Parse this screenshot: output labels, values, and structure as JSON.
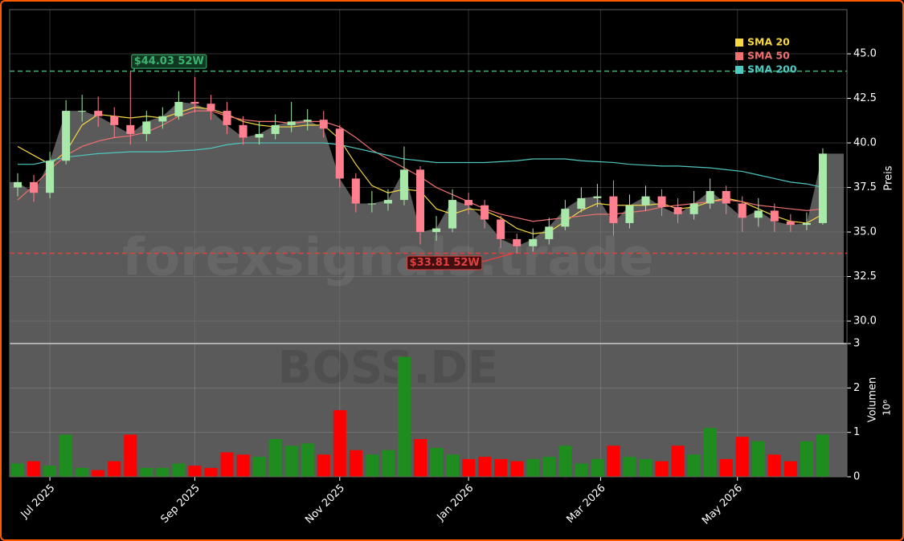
{
  "chart_data": [
    {
      "type": "candlestick",
      "watermark": "forexsignals.trade",
      "y_label": "Preis",
      "x": [
        0.5,
        1.5,
        2.5,
        3.5,
        4.5,
        5.5,
        6.5,
        7.5,
        8.5,
        9.5,
        10.5,
        11.5,
        12.5,
        13.5,
        14.5,
        15.5,
        16.5,
        17.5,
        18.5,
        19.5,
        20.5,
        21.5,
        22.5,
        23.5,
        24.5,
        25.5,
        26.5,
        27.5,
        28.5,
        29.5,
        30.5,
        31.5,
        32.5,
        33.5,
        34.5,
        35.5,
        36.5,
        37.5,
        38.5,
        39.5,
        40.5,
        41.5,
        42.5,
        43.5,
        44.5,
        45.5,
        46.5,
        47.5,
        48.5,
        49.5,
        50.5
      ],
      "open": [
        37.5,
        37.8,
        37.2,
        39.0,
        41.8,
        41.8,
        41.5,
        41.0,
        40.5,
        41.2,
        41.5,
        42.3,
        42.2,
        41.8,
        41.0,
        40.3,
        40.5,
        41.0,
        41.2,
        41.3,
        40.8,
        38.0,
        36.6,
        36.6,
        36.8,
        38.5,
        35.0,
        35.2,
        36.8,
        36.5,
        35.7,
        34.6,
        34.2,
        34.6,
        35.3,
        36.3,
        36.9,
        37.0,
        35.5,
        36.5,
        37.0,
        36.4,
        36.0,
        36.6,
        37.3,
        36.6,
        35.8,
        36.2,
        35.6,
        35.4,
        35.5
      ],
      "high": [
        38.3,
        38.2,
        39.5,
        42.4,
        42.7,
        42.6,
        42.0,
        44.03,
        41.8,
        42.0,
        42.9,
        43.7,
        42.7,
        42.3,
        41.5,
        41.2,
        41.6,
        42.3,
        41.9,
        41.8,
        41.0,
        38.3,
        37.3,
        37.4,
        39.8,
        38.7,
        35.9,
        37.4,
        37.2,
        36.8,
        35.9,
        34.9,
        35.2,
        35.8,
        36.8,
        37.5,
        37.7,
        37.9,
        37.1,
        37.6,
        37.4,
        36.9,
        37.3,
        38.0,
        37.6,
        37.0,
        36.9,
        36.6,
        36.0,
        36.1,
        39.7
      ],
      "low": [
        37.0,
        36.7,
        36.9,
        38.8,
        41.2,
        40.9,
        40.3,
        39.9,
        40.1,
        40.8,
        41.3,
        41.7,
        41.3,
        40.5,
        39.9,
        39.9,
        40.2,
        40.6,
        40.7,
        40.3,
        37.5,
        36.1,
        36.1,
        36.2,
        36.5,
        34.3,
        34.5,
        35.0,
        36.0,
        35.2,
        34.1,
        33.81,
        33.9,
        34.3,
        35.1,
        36.1,
        36.4,
        34.8,
        35.2,
        36.2,
        35.9,
        35.5,
        35.7,
        36.3,
        36.0,
        35.0,
        35.3,
        35.0,
        35.0,
        35.1,
        35.4
      ],
      "close": [
        37.8,
        37.2,
        39.0,
        41.8,
        41.8,
        41.5,
        41.0,
        40.5,
        41.2,
        41.5,
        42.3,
        42.2,
        41.8,
        41.0,
        40.3,
        40.5,
        41.0,
        41.2,
        41.3,
        40.8,
        38.0,
        36.6,
        36.6,
        36.8,
        38.5,
        35.0,
        35.2,
        36.8,
        36.5,
        35.7,
        34.6,
        34.2,
        34.6,
        35.3,
        36.3,
        36.9,
        37.0,
        35.5,
        36.5,
        37.0,
        36.4,
        36.0,
        36.6,
        37.3,
        36.6,
        35.8,
        36.2,
        35.6,
        35.4,
        35.5,
        39.4
      ],
      "up_color": "#a8e8a8",
      "down_color": "#ff7f8f",
      "area_color": "#5a5a5a",
      "series": [
        {
          "name": "SMA 20",
          "color": "#f5d742",
          "values": [
            39.8,
            39.3,
            38.8,
            39.5,
            41.0,
            41.6,
            41.5,
            41.4,
            41.5,
            41.4,
            41.7,
            42.0,
            41.9,
            41.6,
            41.2,
            41.0,
            40.9,
            40.9,
            41.0,
            41.0,
            40.2,
            38.8,
            37.6,
            37.2,
            37.4,
            37.3,
            36.3,
            36.0,
            36.3,
            36.2,
            35.8,
            35.2,
            34.9,
            35.0,
            35.6,
            36.2,
            36.6,
            36.5,
            36.5,
            36.5,
            36.6,
            36.3,
            36.4,
            36.7,
            36.9,
            36.7,
            36.3,
            35.9,
            35.6,
            35.5,
            36.0
          ]
        },
        {
          "name": "SMA 50",
          "color": "#f07070",
          "values": [
            36.8,
            37.6,
            38.5,
            39.3,
            39.8,
            40.1,
            40.3,
            40.4,
            40.6,
            41.0,
            41.5,
            41.8,
            41.8,
            41.5,
            41.3,
            41.2,
            41.2,
            41.1,
            41.2,
            41.2,
            40.9,
            40.3,
            39.6,
            39.1,
            38.6,
            38.1,
            37.5,
            37.1,
            36.7,
            36.3,
            36.0,
            35.8,
            35.6,
            35.7,
            35.8,
            35.9,
            36.0,
            36.0,
            36.1,
            36.2,
            36.4,
            36.5,
            36.6,
            36.7,
            36.8,
            36.7,
            36.5,
            36.4,
            36.3,
            36.2,
            36.3
          ]
        },
        {
          "name": "SMA 200",
          "color": "#4fc8c0",
          "values": [
            38.8,
            38.8,
            39.0,
            39.2,
            39.3,
            39.4,
            39.45,
            39.5,
            39.5,
            39.5,
            39.55,
            39.6,
            39.7,
            39.9,
            40.0,
            40.0,
            40.0,
            40.0,
            40.0,
            40.0,
            39.9,
            39.7,
            39.5,
            39.3,
            39.1,
            39.0,
            38.9,
            38.9,
            38.9,
            38.9,
            38.95,
            39.0,
            39.1,
            39.1,
            39.1,
            39.0,
            38.95,
            38.9,
            38.8,
            38.75,
            38.7,
            38.7,
            38.65,
            38.6,
            38.5,
            38.4,
            38.2,
            38.0,
            37.8,
            37.7,
            37.5
          ]
        }
      ],
      "annotations": [
        {
          "value": 44.03,
          "label": "$44.03 52W",
          "color": "#3cb371"
        },
        {
          "value": 33.81,
          "label": "$33.81 52W",
          "color": "#e04040"
        }
      ],
      "xlim": [
        0,
        52
      ],
      "ylim": [
        28.74,
        47.48
      ],
      "yticks": [
        {
          "value": 30,
          "label": "30.0"
        },
        {
          "value": 32.5,
          "label": "32.5"
        },
        {
          "value": 35,
          "label": "35.0"
        },
        {
          "value": 37.5,
          "label": "37.5"
        },
        {
          "value": 40,
          "label": "40.0"
        },
        {
          "value": 42.5,
          "label": "42.5"
        },
        {
          "value": 45,
          "label": "45.0"
        }
      ],
      "grid": true,
      "legend": "upper right"
    },
    {
      "type": "bar",
      "watermark": "BOSS.DE",
      "y_label": "Volumen",
      "y_scale_label": "10⁶",
      "x": [
        0.5,
        1.5,
        2.5,
        3.5,
        4.5,
        5.5,
        6.5,
        7.5,
        8.5,
        9.5,
        10.5,
        11.5,
        12.5,
        13.5,
        14.5,
        15.5,
        16.5,
        17.5,
        18.5,
        19.5,
        20.5,
        21.5,
        22.5,
        23.5,
        24.5,
        25.5,
        26.5,
        27.5,
        28.5,
        29.5,
        30.5,
        31.5,
        32.5,
        33.5,
        34.5,
        35.5,
        36.5,
        37.5,
        38.5,
        39.5,
        40.5,
        41.5,
        42.5,
        43.5,
        44.5,
        45.5,
        46.5,
        47.5,
        48.5,
        49.5,
        50.5
      ],
      "values": [
        0.3,
        0.35,
        0.25,
        0.95,
        0.2,
        0.15,
        0.35,
        0.95,
        0.2,
        0.2,
        0.3,
        0.25,
        0.2,
        0.55,
        0.5,
        0.45,
        0.85,
        0.7,
        0.75,
        0.5,
        1.5,
        0.6,
        0.5,
        0.6,
        2.7,
        0.85,
        0.65,
        0.5,
        0.4,
        0.45,
        0.4,
        0.35,
        0.4,
        0.45,
        0.7,
        0.3,
        0.4,
        0.7,
        0.45,
        0.4,
        0.35,
        0.7,
        0.5,
        1.1,
        0.4,
        0.9,
        0.8,
        0.5,
        0.35,
        0.8,
        0.95
      ],
      "up_color": "#1e8c1e",
      "down_color": "#ff0000",
      "xlim": [
        0,
        52
      ],
      "ylim": [
        0,
        3
      ],
      "yticks": [
        0,
        1,
        2,
        3
      ],
      "xticks": [
        {
          "value": 2.5,
          "label": "Jul 2025"
        },
        {
          "value": 11.5,
          "label": "Sep 2025"
        },
        {
          "value": 20.5,
          "label": "Nov 2025"
        },
        {
          "value": 28.5,
          "label": "Jan 2026"
        },
        {
          "value": 36.7,
          "label": "Mar 2026"
        },
        {
          "value": 45.2,
          "label": "May 2026"
        }
      ],
      "grid": true
    }
  ]
}
